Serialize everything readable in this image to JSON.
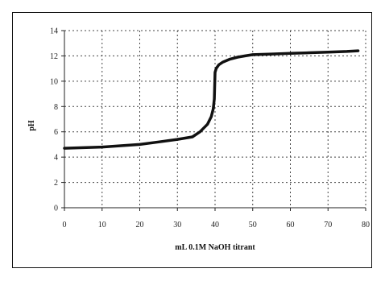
{
  "chart_data": {
    "type": "line",
    "title": "",
    "xlabel": "mL 0.1M NaOH titrant",
    "ylabel": "pH",
    "xlim": [
      0,
      80
    ],
    "ylim": [
      0,
      14
    ],
    "x_ticks": [
      "0",
      "10",
      "20",
      "30",
      "40",
      "50",
      "60",
      "70",
      "80"
    ],
    "y_ticks": [
      "0",
      "2",
      "4",
      "6",
      "8",
      "10",
      "12",
      "14"
    ],
    "grid": true,
    "grid_style": "dotted",
    "series": [
      {
        "color": "#111111",
        "x": [
          0,
          5,
          10,
          15,
          20,
          25,
          30,
          34,
          36,
          38,
          39,
          39.5,
          39.8,
          40,
          40.3,
          41,
          42,
          44,
          46,
          48,
          50,
          55,
          60,
          65,
          70,
          75,
          78
        ],
        "y": [
          4.7,
          4.75,
          4.8,
          4.9,
          5.0,
          5.2,
          5.4,
          5.6,
          6.0,
          6.6,
          7.2,
          7.8,
          8.6,
          10.7,
          11.0,
          11.3,
          11.5,
          11.75,
          11.9,
          12.0,
          12.1,
          12.15,
          12.2,
          12.25,
          12.3,
          12.35,
          12.4
        ]
      }
    ]
  }
}
